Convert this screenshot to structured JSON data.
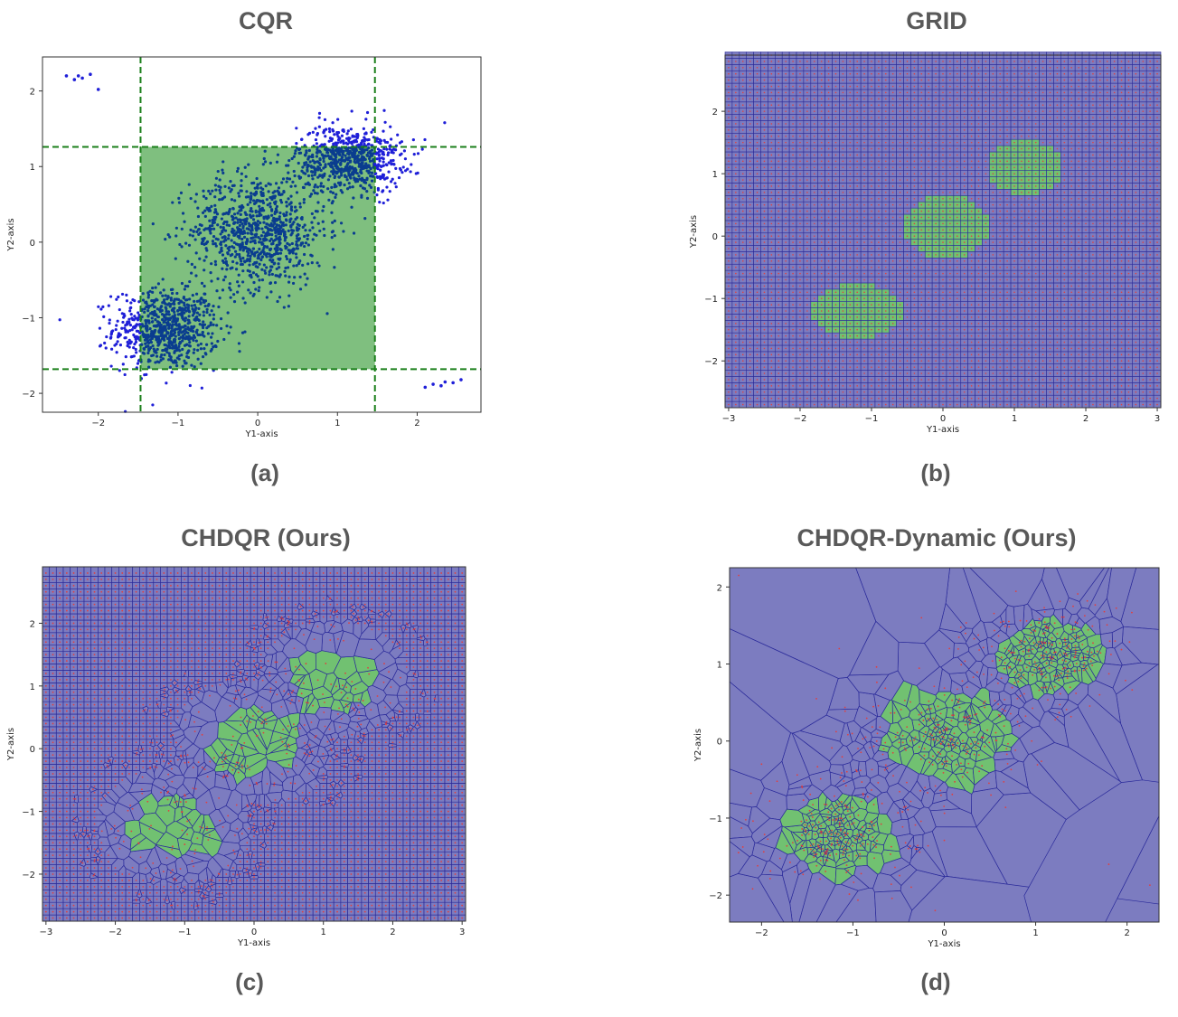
{
  "panels": [
    {
      "id": "a",
      "title": "CQR",
      "caption": "(a)",
      "chart_data": {
        "type": "scatter",
        "xlabel": "Y1-axis",
        "ylabel": "Y2-axis",
        "xlim": [
          -2.7,
          2.8
        ],
        "ylim": [
          -2.25,
          2.45
        ],
        "xticks": [
          -2,
          -1,
          0,
          1,
          2
        ],
        "yticks": [
          -2,
          -1,
          0,
          1,
          2
        ],
        "region": {
          "type": "rectangle",
          "x": [
            -1.47,
            1.47
          ],
          "y": [
            -1.68,
            1.26
          ],
          "color": "#7fbf7f"
        },
        "dashed_lines": {
          "x": [
            -1.47,
            1.47
          ],
          "y": [
            -1.68,
            1.26
          ],
          "color": "#1a7f1a"
        },
        "clusters": [
          {
            "cx": -1.15,
            "cy": -1.15,
            "sx": 0.33,
            "sy": 0.26,
            "n": 750
          },
          {
            "cx": 0.0,
            "cy": 0.15,
            "sx": 0.42,
            "sy": 0.38,
            "n": 900
          },
          {
            "cx": 1.15,
            "cy": 1.1,
            "sx": 0.33,
            "sy": 0.22,
            "n": 700
          }
        ],
        "outlier_groups": [
          {
            "x": [
              -2.4,
              -2.3,
              -2.25,
              -2.2,
              -2.1,
              -2.0
            ],
            "y": [
              2.2,
              2.15,
              2.2,
              2.17,
              2.22,
              2.02
            ]
          },
          {
            "x": [
              2.1,
              2.2,
              2.3,
              2.35,
              2.45,
              2.55
            ],
            "y": [
              -1.92,
              -1.88,
              -1.9,
              -1.85,
              -1.86,
              -1.82
            ]
          }
        ],
        "point_color": "#1f1fd8"
      }
    },
    {
      "id": "b",
      "title": "GRID",
      "caption": "(b)",
      "chart_data": {
        "type": "grid-partition",
        "xlabel": "Y1-axis",
        "ylabel": "Y2-axis",
        "xlim": [
          -3.05,
          3.05
        ],
        "ylim": [
          -2.75,
          2.9
        ],
        "xticks": [
          -3,
          -2,
          -1,
          0,
          1,
          2,
          3
        ],
        "yticks": [
          -2,
          -1,
          0,
          1,
          2
        ],
        "cell_size": 0.1,
        "background_color": "#7c7cc0",
        "region_color": "#71c171",
        "blobs": [
          {
            "cx": -1.2,
            "cy": -1.2,
            "rx": 0.62,
            "ry": 0.45
          },
          {
            "cx": 0.05,
            "cy": 0.15,
            "rx": 0.62,
            "ry": 0.5
          },
          {
            "cx": 1.15,
            "cy": 1.1,
            "rx": 0.52,
            "ry": 0.45
          }
        ]
      }
    },
    {
      "id": "c",
      "title": "CHDQR (Ours)",
      "caption": "(c)",
      "chart_data": {
        "type": "voronoi-partition",
        "xlabel": "Y1-axis",
        "ylabel": "Y2-axis",
        "xlim": [
          -3.05,
          3.05
        ],
        "ylim": [
          -2.75,
          2.9
        ],
        "xticks": [
          -3,
          -2,
          -1,
          0,
          1,
          2,
          3
        ],
        "yticks": [
          -2,
          -1,
          0,
          1,
          2
        ],
        "background_color": "#7c7cc0",
        "region_color": "#71c171",
        "blobs": [
          {
            "cx": -1.15,
            "cy": -1.22,
            "rx": 0.65,
            "ry": 0.48
          },
          {
            "cx": -0.02,
            "cy": 0.1,
            "rx": 0.72,
            "ry": 0.55
          },
          {
            "cx": 1.15,
            "cy": 1.1,
            "rx": 0.62,
            "ry": 0.48
          }
        ]
      }
    },
    {
      "id": "d",
      "title": "CHDQR-Dynamic (Ours)",
      "caption": "(d)",
      "chart_data": {
        "type": "voronoi-partition",
        "xlabel": "Y1-axis",
        "ylabel": "Y2-axis",
        "xlim": [
          -2.35,
          2.35
        ],
        "ylim": [
          -2.35,
          2.25
        ],
        "xticks": [
          -2,
          -1,
          0,
          1,
          2
        ],
        "yticks": [
          -2,
          -1,
          0,
          1,
          2
        ],
        "background_color": "#7c7cc0",
        "region_color": "#71c171",
        "blobs": [
          {
            "cx": -1.18,
            "cy": -1.22,
            "rx": 0.72,
            "ry": 0.5
          },
          {
            "cx": 0.0,
            "cy": 0.05,
            "rx": 0.72,
            "ry": 0.6
          },
          {
            "cx": 1.15,
            "cy": 1.1,
            "rx": 0.62,
            "ry": 0.48
          }
        ]
      }
    }
  ]
}
